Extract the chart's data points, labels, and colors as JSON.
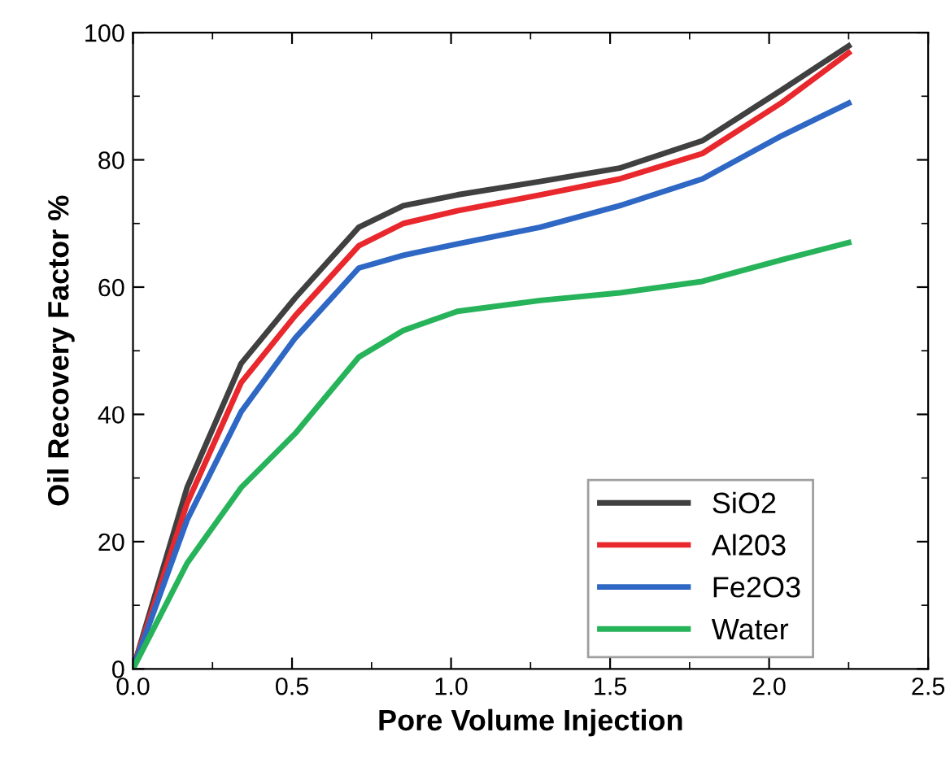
{
  "chart_data": {
    "type": "line",
    "xlabel": "Pore Volume Injection",
    "ylabel": "Oil Recovery Factor %",
    "x": [
      0,
      0.17,
      0.34,
      0.51,
      0.71,
      0.85,
      1.02,
      1.28,
      1.53,
      1.79,
      2.04,
      2.25
    ],
    "series": [
      {
        "name": "SiO2",
        "color": "#404040",
        "values": [
          0,
          28.5,
          48,
          58.3,
          69.4,
          72.8,
          74.5,
          76.6,
          78.7,
          83,
          91,
          97.9
        ]
      },
      {
        "name": "Al203",
        "color": "#e8282c",
        "values": [
          0,
          26,
          45,
          55.5,
          66.5,
          70,
          72,
          74.5,
          77,
          81,
          89,
          96.8
        ]
      },
      {
        "name": "Fe2O3",
        "color": "#2e67c4",
        "values": [
          0,
          23.4,
          40.4,
          52,
          63,
          65,
          66.8,
          69.4,
          72.8,
          77,
          83.8,
          88.9
        ]
      },
      {
        "name": "Water",
        "color": "#27b35a",
        "values": [
          0,
          16.6,
          28.5,
          37,
          49,
          53.2,
          56.2,
          57.9,
          59.1,
          60.9,
          64.3,
          67
        ]
      }
    ],
    "xlim": [
      0,
      2.5
    ],
    "xticks": [
      {
        "value": 0,
        "label": "0.0"
      },
      {
        "value": 0.5,
        "label": "0.5"
      },
      {
        "value": 1,
        "label": "1.0"
      },
      {
        "value": 1.5,
        "label": "1.5"
      },
      {
        "value": 2,
        "label": "2.0"
      },
      {
        "value": 2.5,
        "label": "2.5"
      }
    ],
    "ylim": [
      0,
      100
    ],
    "yticks": [
      0,
      20,
      40,
      60,
      80,
      100
    ],
    "legend": "bottom right",
    "grid": false,
    "marker": "none",
    "line_style": "solid"
  }
}
